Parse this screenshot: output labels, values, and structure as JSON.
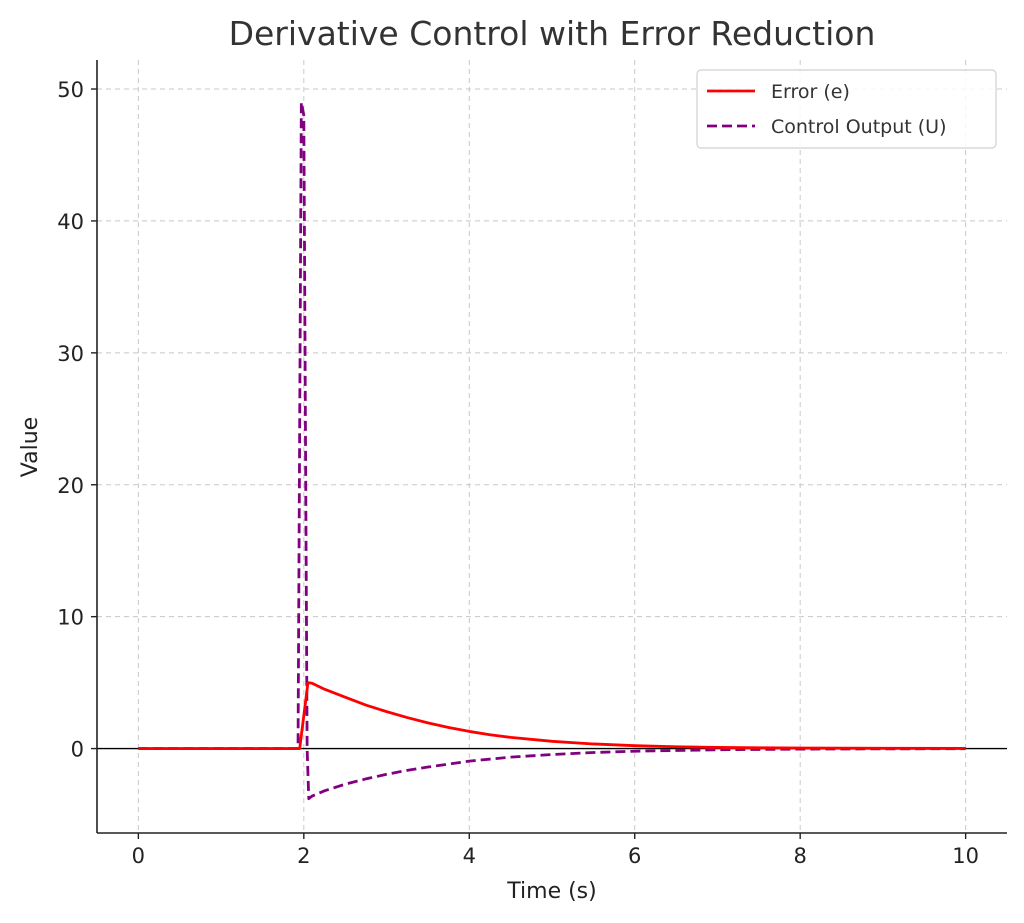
{
  "chart_data": {
    "type": "line",
    "title": "Derivative Control with Error Reduction",
    "xlabel": "Time (s)",
    "ylabel": "Value",
    "xlim": [
      -0.5,
      10.5
    ],
    "ylim": [
      -6.4,
      52.2
    ],
    "xticks": [
      0,
      2,
      4,
      6,
      8,
      10
    ],
    "yticks": [
      0,
      10,
      20,
      30,
      40,
      50
    ],
    "grid": true,
    "zero_line": true,
    "legend_position": "top-right",
    "series": [
      {
        "name": "Error (e)",
        "color": "#ff0000",
        "style": "solid",
        "x": [
          0,
          1.95,
          2.0,
          2.05,
          2.1,
          2.25,
          2.5,
          2.75,
          3.0,
          3.25,
          3.5,
          3.75,
          4.0,
          4.25,
          4.5,
          5.0,
          5.5,
          6.0,
          6.5,
          7.0,
          7.5,
          8.0,
          9.0,
          10.0
        ],
        "y": [
          0,
          0,
          2.5,
          5.0,
          4.95,
          4.5,
          3.9,
          3.3,
          2.8,
          2.35,
          1.95,
          1.6,
          1.3,
          1.05,
          0.85,
          0.55,
          0.35,
          0.22,
          0.14,
          0.09,
          0.06,
          0.04,
          0.02,
          0.01
        ]
      },
      {
        "name": "Control Output (U)",
        "color": "#800080",
        "style": "dashed",
        "x": [
          0,
          1.93,
          1.97,
          2.0,
          2.04,
          2.06,
          2.1,
          2.25,
          2.5,
          2.75,
          3.0,
          3.25,
          3.5,
          4.0,
          4.5,
          5.0,
          5.5,
          6.0,
          7.0,
          8.0,
          9.0,
          10.0
        ],
        "y": [
          0,
          0,
          49,
          48,
          0,
          -3.8,
          -3.6,
          -3.2,
          -2.7,
          -2.3,
          -1.95,
          -1.65,
          -1.4,
          -0.95,
          -0.65,
          -0.45,
          -0.3,
          -0.2,
          -0.09,
          -0.04,
          -0.02,
          -0.01
        ]
      }
    ]
  },
  "colors": {
    "error_line": "#ff0000",
    "control_line": "#800080",
    "grid": "#c8c8c8",
    "axis": "#222222"
  }
}
